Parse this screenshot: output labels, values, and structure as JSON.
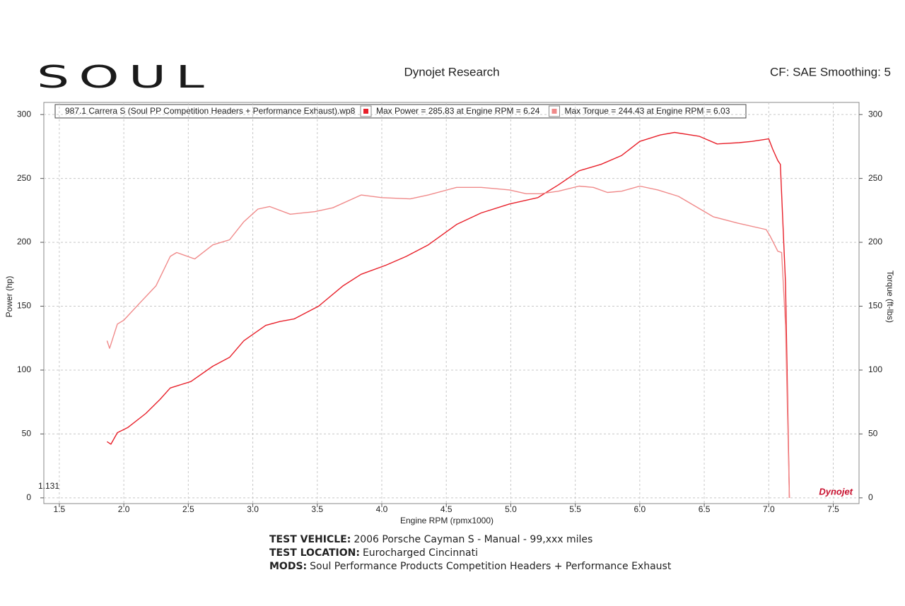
{
  "logo": "SOUL",
  "chart_data": {
    "type": "line",
    "title": "Dynojet Research",
    "subtitle": "CF: SAE Smoothing: 5",
    "legend_title": "987.1 Carrera S (Soul PP Competition Headers + Performance Exhaust).wp8",
    "x_label": "Engine RPM (rpmx1000)",
    "y_label": "Power (hp)",
    "y2_label": "Torque (ft-lbs)",
    "annotation": "1.131",
    "watermark": "Dynojet",
    "xlim": [
      1.38,
      7.7
    ],
    "xticks": [
      1.5,
      {
        "value": 2,
        "label": "2.0"
      },
      2.5,
      {
        "value": 3,
        "label": "3.0"
      },
      3.5,
      {
        "value": 4,
        "label": "4.0"
      },
      4.5,
      {
        "value": 5,
        "label": "5.0"
      },
      5.5,
      {
        "value": 6,
        "label": "6.0"
      },
      6.5,
      {
        "value": 7,
        "label": "7.0"
      },
      7.5
    ],
    "ylim": [
      -4.5,
      309.5
    ],
    "yticks": [
      0,
      50,
      100,
      150,
      200,
      250,
      300
    ],
    "y2lim": [
      -4.5,
      309.5
    ],
    "y2ticks": [
      0,
      50,
      100,
      150,
      200,
      250,
      300
    ],
    "grid": true,
    "series": [
      {
        "name": "Max Power = 285.83 at Engine RPM = 6.24",
        "color": "#e8202a",
        "x": [
          1.87,
          1.9,
          1.95,
          2.03,
          2.17,
          2.28,
          2.36,
          2.52,
          2.69,
          2.82,
          2.93,
          3.1,
          3.21,
          3.32,
          3.51,
          3.7,
          3.84,
          4.03,
          4.19,
          4.36,
          4.58,
          4.77,
          4.99,
          5.21,
          5.37,
          5.53,
          5.7,
          5.86,
          6.0,
          6.16,
          6.27,
          6.46,
          6.6,
          6.77,
          6.87,
          7.0,
          7.03,
          7.07,
          7.09,
          7.13,
          7.16
        ],
        "values": [
          44,
          42,
          51,
          55,
          66,
          77,
          86,
          91,
          103,
          110,
          123,
          135,
          138,
          140,
          150,
          166,
          175,
          182,
          189,
          198,
          214,
          223,
          230,
          235,
          245,
          256,
          261,
          268,
          279,
          284,
          286,
          283,
          277,
          278,
          279,
          281,
          273,
          264,
          261,
          168,
          0
        ]
      },
      {
        "name": "Max Torque = 244.43 at Engine RPM = 6.03",
        "color": "#f08a8a",
        "axis": "y2",
        "x": [
          1.87,
          1.89,
          1.95,
          2.0,
          2.11,
          2.25,
          2.36,
          2.41,
          2.55,
          2.69,
          2.82,
          2.93,
          3.04,
          3.13,
          3.29,
          3.48,
          3.62,
          3.84,
          4.0,
          4.22,
          4.36,
          4.58,
          4.77,
          4.99,
          5.12,
          5.23,
          5.37,
          5.53,
          5.64,
          5.75,
          5.86,
          6.0,
          6.14,
          6.3,
          6.57,
          6.76,
          6.98,
          7.01,
          7.07,
          7.1,
          7.13,
          7.16
        ],
        "values": [
          123,
          117,
          136,
          139,
          151,
          166,
          189,
          192,
          187,
          198,
          202,
          216,
          226,
          228,
          222,
          224,
          227,
          237,
          235,
          234,
          237,
          243,
          243,
          241,
          238,
          238,
          240,
          244,
          243,
          239,
          240,
          244,
          241,
          236,
          220,
          215,
          210,
          205,
          193,
          192,
          135,
          0
        ]
      }
    ]
  },
  "footer": [
    {
      "label": "TEST VEHICLE:",
      "text": "2006 Porsche Cayman S - Manual - 99,xxx miles"
    },
    {
      "label": "TEST LOCATION:",
      "text": "Eurocharged Cincinnati"
    },
    {
      "label": "MODS:",
      "text": "Soul Performance Products Competition Headers + Performance Exhaust"
    }
  ]
}
